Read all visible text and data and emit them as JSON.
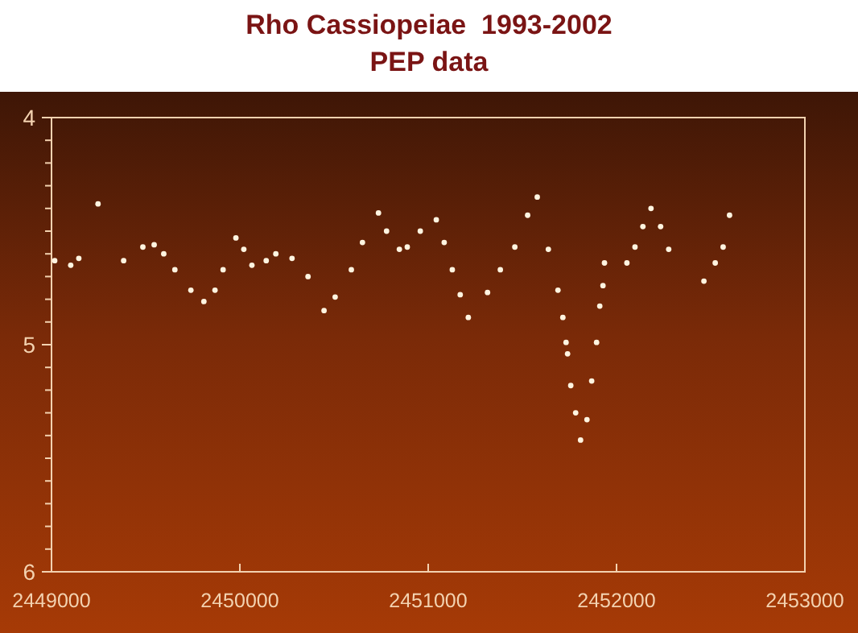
{
  "chart_data": {
    "type": "scatter",
    "title": "Rho Cassiopeiae  1993-2002",
    "subtitle": "PEP data",
    "x": [
      2449017,
      2449102,
      2449145,
      2449247,
      2449383,
      2449485,
      2449545,
      2449596,
      2449655,
      2449740,
      2449809,
      2449868,
      2449911,
      2449979,
      2450021,
      2450064,
      2450140,
      2450191,
      2450277,
      2450362,
      2450447,
      2450506,
      2450592,
      2450651,
      2450736,
      2450779,
      2450847,
      2450889,
      2450958,
      2451043,
      2451085,
      2451128,
      2451170,
      2451213,
      2451315,
      2451383,
      2451460,
      2451528,
      2451579,
      2451638,
      2451689,
      2451715,
      2451732,
      2451740,
      2451757,
      2451783,
      2451809,
      2451843,
      2451868,
      2451894,
      2451911,
      2451928,
      2451936,
      2452055,
      2452098,
      2452140,
      2452183,
      2452234,
      2452277,
      2452464,
      2452524,
      2452566,
      2452600
    ],
    "series": [
      {
        "color": "#fff4e0",
        "values": [
          4.63,
          4.65,
          4.62,
          4.38,
          4.63,
          4.57,
          4.56,
          4.6,
          4.67,
          4.76,
          4.81,
          4.76,
          4.67,
          4.53,
          4.58,
          4.65,
          4.63,
          4.6,
          4.62,
          4.7,
          4.85,
          4.79,
          4.67,
          4.55,
          4.42,
          4.5,
          4.58,
          4.57,
          4.5,
          4.45,
          4.55,
          4.67,
          4.78,
          4.88,
          4.77,
          4.67,
          4.57,
          4.43,
          4.35,
          4.58,
          4.76,
          4.88,
          4.99,
          5.04,
          5.18,
          5.3,
          5.42,
          5.33,
          5.16,
          4.99,
          4.83,
          4.74,
          4.64,
          4.64,
          4.57,
          4.48,
          4.4,
          4.48,
          4.58,
          4.72,
          4.64,
          4.57,
          4.43
        ]
      }
    ],
    "xlim": [
      2449000,
      2453000
    ],
    "xticks": [
      2449000,
      2450000,
      2451000,
      2452000,
      2453000
    ],
    "ylim": [
      6,
      4
    ],
    "yticks": [
      4,
      {
        "value": 4.1,
        "label": null
      },
      {
        "value": 4.2,
        "label": null
      },
      {
        "value": 4.3,
        "label": null
      },
      {
        "value": 4.4,
        "label": null
      },
      {
        "value": 4.5,
        "label": null
      },
      {
        "value": 4.6,
        "label": null
      },
      {
        "value": 4.7,
        "label": null
      },
      {
        "value": 4.8,
        "label": null
      },
      {
        "value": 4.9,
        "label": null
      },
      5,
      {
        "value": 5.1,
        "label": null
      },
      {
        "value": 5.2,
        "label": null
      },
      {
        "value": 5.3,
        "label": null
      },
      {
        "value": 5.4,
        "label": null
      },
      {
        "value": 5.5,
        "label": null
      },
      {
        "value": 5.6,
        "label": null
      },
      {
        "value": 5.7,
        "label": null
      },
      {
        "value": 5.8,
        "label": null
      },
      {
        "value": 5.9,
        "label": null
      },
      6
    ],
    "marker": "circle",
    "grid": false
  }
}
